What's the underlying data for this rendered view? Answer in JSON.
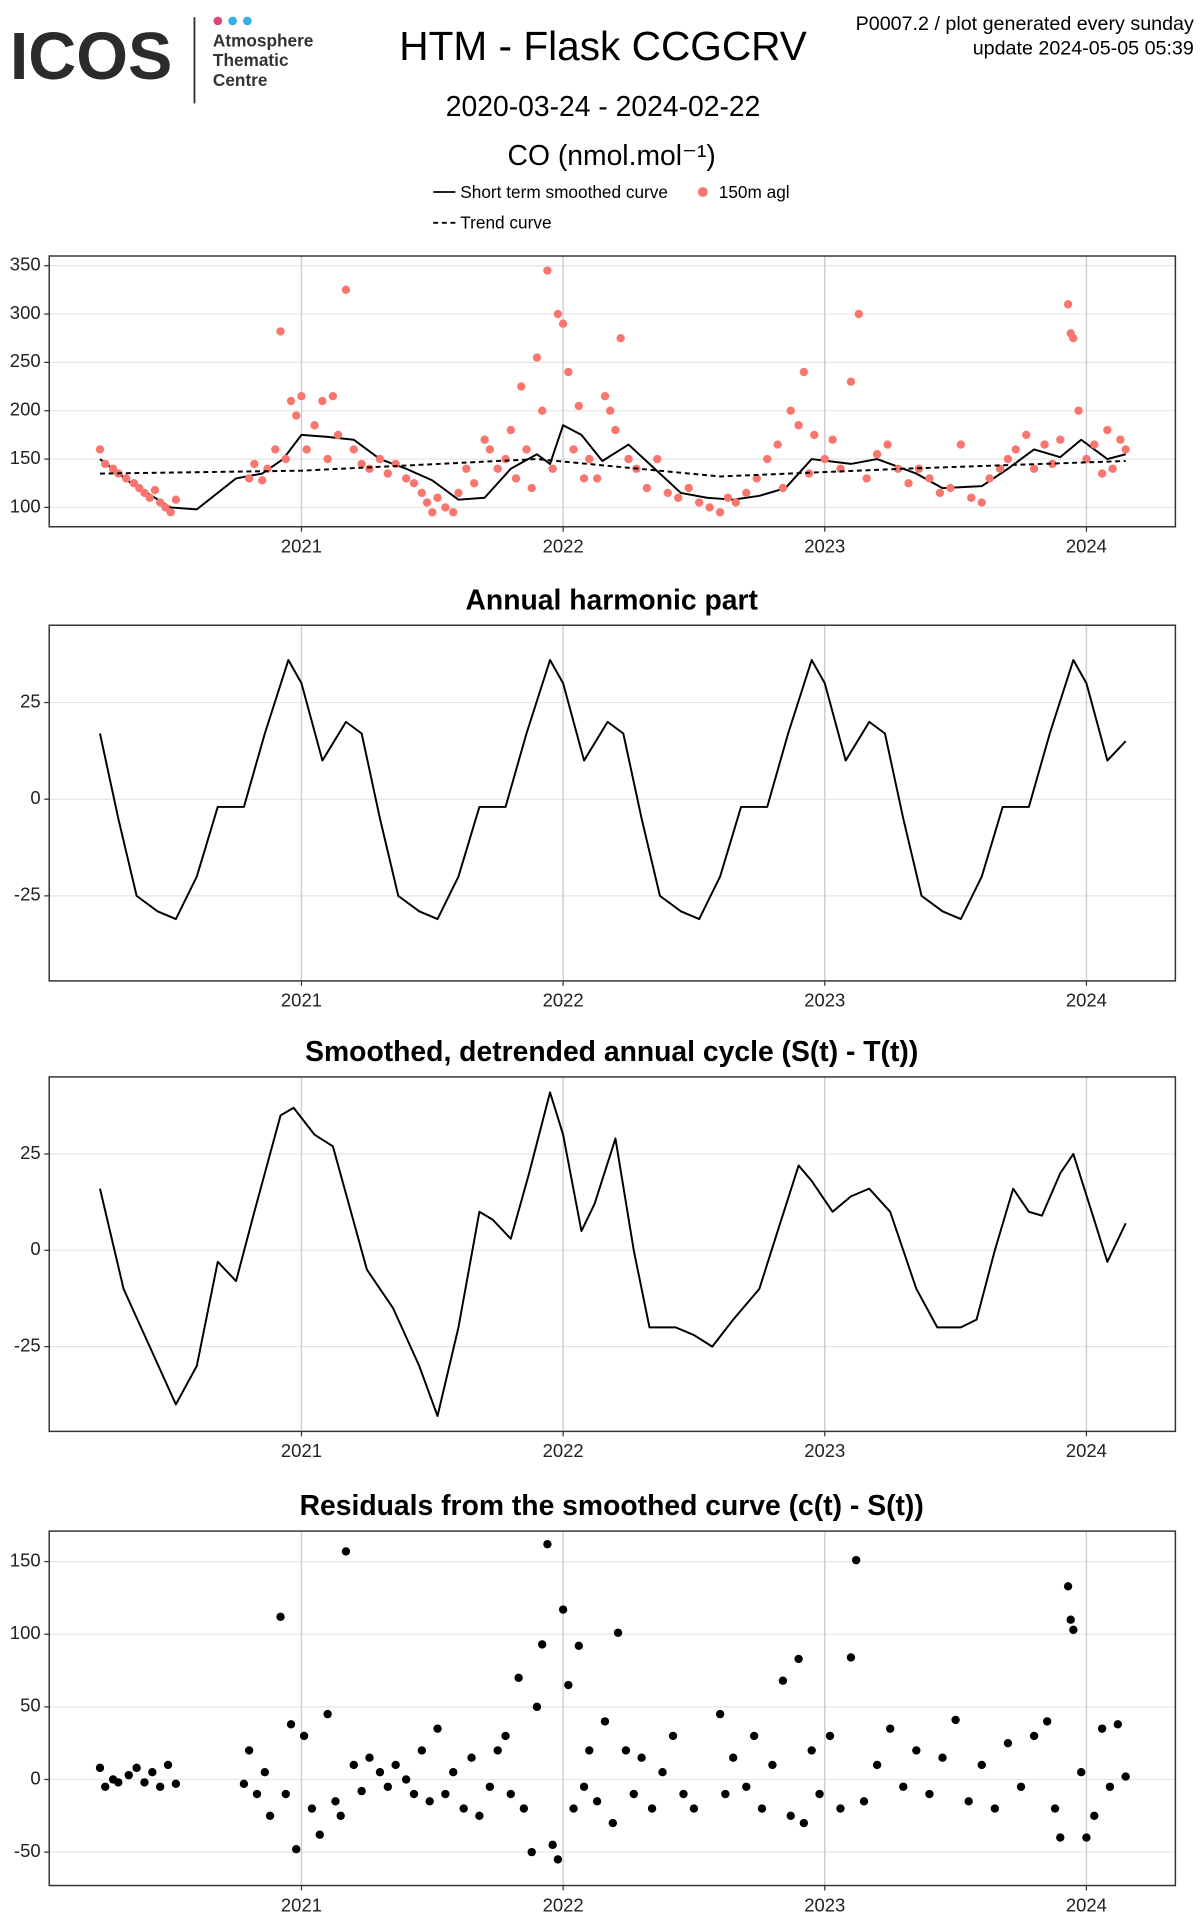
{
  "header": {
    "logo": "ICOS",
    "org": [
      "Atmosphere",
      "Thematic",
      "Centre"
    ],
    "title": "HTM - Flask CCGCRV",
    "subtitle": "2020-03-24 - 2024-02-22",
    "species": "CO (nmol.mol⁻¹)",
    "note": [
      "P0007.2 / plot generated every sunday",
      "update  2024-05-05 05:39"
    ]
  },
  "chart_data": [
    {
      "type": "line",
      "xlim": [
        2020.036,
        2024.34
      ],
      "xticks": [
        2021,
        2022,
        2023,
        2024
      ],
      "ylim": [
        80,
        360
      ],
      "yticks": [
        100,
        150,
        200,
        250,
        300,
        350
      ],
      "grid": true,
      "series": [
        {
          "name": "Short term smoothed curve",
          "color": "#000000",
          "style": "solid",
          "x": [
            2020.23,
            2020.35,
            2020.5,
            2020.6,
            2020.75,
            2020.85,
            2020.93,
            2021.0,
            2021.1,
            2021.2,
            2021.3,
            2021.4,
            2021.5,
            2021.6,
            2021.7,
            2021.8,
            2021.9,
            2021.95,
            2022.0,
            2022.07,
            2022.15,
            2022.25,
            2022.35,
            2022.45,
            2022.55,
            2022.65,
            2022.75,
            2022.85,
            2022.95,
            2023.1,
            2023.2,
            2023.35,
            2023.45,
            2023.6,
            2023.7,
            2023.8,
            2023.9,
            2023.98,
            2024.08,
            2024.15
          ],
          "values": [
            150,
            125,
            100,
            98,
            130,
            135,
            150,
            175,
            173,
            170,
            150,
            140,
            128,
            108,
            110,
            140,
            155,
            145,
            185,
            175,
            148,
            165,
            140,
            115,
            110,
            108,
            112,
            120,
            150,
            145,
            150,
            135,
            120,
            122,
            140,
            160,
            152,
            170,
            150,
            155
          ]
        },
        {
          "name": "150m agl",
          "color": "#f8766d",
          "style": "points",
          "x": [
            2020.23,
            2020.25,
            2020.28,
            2020.3,
            2020.33,
            2020.36,
            2020.38,
            2020.4,
            2020.42,
            2020.44,
            2020.46,
            2020.48,
            2020.5,
            2020.52,
            2020.8,
            2020.82,
            2020.85,
            2020.87,
            2020.9,
            2020.92,
            2020.94,
            2020.96,
            2020.98,
            2021.0,
            2021.02,
            2021.05,
            2021.08,
            2021.1,
            2021.12,
            2021.14,
            2021.17,
            2021.2,
            2021.23,
            2021.26,
            2021.3,
            2021.33,
            2021.36,
            2021.4,
            2021.43,
            2021.46,
            2021.48,
            2021.5,
            2021.52,
            2021.55,
            2021.58,
            2021.6,
            2021.63,
            2021.66,
            2021.7,
            2021.72,
            2021.75,
            2021.78,
            2021.8,
            2021.82,
            2021.84,
            2021.86,
            2021.88,
            2021.9,
            2021.92,
            2021.94,
            2021.96,
            2021.98,
            2022.0,
            2022.02,
            2022.04,
            2022.06,
            2022.08,
            2022.1,
            2022.13,
            2022.16,
            2022.18,
            2022.2,
            2022.22,
            2022.25,
            2022.28,
            2022.32,
            2022.36,
            2022.4,
            2022.44,
            2022.48,
            2022.52,
            2022.56,
            2022.6,
            2022.63,
            2022.66,
            2022.7,
            2022.74,
            2022.78,
            2022.82,
            2022.84,
            2022.87,
            2022.9,
            2022.92,
            2022.94,
            2022.96,
            2023.0,
            2023.03,
            2023.06,
            2023.1,
            2023.13,
            2023.16,
            2023.2,
            2023.24,
            2023.28,
            2023.32,
            2023.36,
            2023.4,
            2023.44,
            2023.48,
            2023.52,
            2023.56,
            2023.6,
            2023.63,
            2023.67,
            2023.7,
            2023.73,
            2023.77,
            2023.8,
            2023.84,
            2023.87,
            2023.9,
            2023.93,
            2023.94,
            2023.95,
            2023.97,
            2024.0,
            2024.03,
            2024.06,
            2024.08,
            2024.1,
            2024.13,
            2024.15
          ],
          "values": [
            160,
            145,
            140,
            135,
            130,
            125,
            120,
            115,
            110,
            118,
            105,
            100,
            95,
            108,
            130,
            145,
            128,
            140,
            160,
            282,
            150,
            210,
            195,
            215,
            160,
            185,
            210,
            150,
            215,
            175,
            325,
            160,
            145,
            140,
            150,
            135,
            145,
            130,
            125,
            115,
            105,
            95,
            110,
            100,
            95,
            115,
            140,
            125,
            170,
            160,
            140,
            150,
            180,
            130,
            225,
            160,
            120,
            255,
            200,
            345,
            140,
            300,
            290,
            240,
            160,
            205,
            130,
            150,
            130,
            215,
            200,
            180,
            275,
            150,
            140,
            120,
            150,
            115,
            110,
            120,
            105,
            100,
            95,
            110,
            105,
            115,
            130,
            150,
            165,
            120,
            200,
            185,
            240,
            135,
            175,
            150,
            170,
            140,
            230,
            300,
            130,
            155,
            165,
            140,
            125,
            140,
            130,
            115,
            120,
            165,
            110,
            105,
            130,
            140,
            150,
            160,
            175,
            140,
            165,
            145,
            170,
            310,
            280,
            275,
            200,
            150,
            165,
            135,
            180,
            140,
            170,
            160
          ]
        },
        {
          "name": "Trend curve",
          "color": "#000000",
          "style": "dashed",
          "x": [
            2020.23,
            2021.0,
            2021.9,
            2022.6,
            2023.3,
            2024.15
          ],
          "values": [
            135,
            138,
            150,
            132,
            140,
            148
          ]
        }
      ]
    },
    {
      "type": "line",
      "title": "Annual harmonic part",
      "xlim": [
        2020.036,
        2024.34
      ],
      "xticks": [
        2021,
        2022,
        2023,
        2024
      ],
      "ylim": [
        -47,
        45
      ],
      "yticks": [
        -25,
        0,
        25
      ],
      "grid": true,
      "color": "#000000",
      "x": [
        2020.23,
        2020.3,
        2020.37,
        2020.45,
        2020.52,
        2020.6,
        2020.68,
        2020.78,
        2020.86,
        2020.95,
        2021.0,
        2021.08,
        2021.17,
        2021.23,
        2021.3,
        2021.37,
        2021.45,
        2021.52,
        2021.6,
        2021.68,
        2021.78,
        2021.86,
        2021.95,
        2022.0,
        2022.08,
        2022.17,
        2022.23,
        2022.3,
        2022.37,
        2022.45,
        2022.52,
        2022.6,
        2022.68,
        2022.78,
        2022.86,
        2022.95,
        2023.0,
        2023.08,
        2023.17,
        2023.23,
        2023.3,
        2023.37,
        2023.45,
        2023.52,
        2023.6,
        2023.68,
        2023.78,
        2023.86,
        2023.95,
        2024.0,
        2024.08,
        2024.15
      ],
      "values": [
        17,
        -5,
        -25,
        -29,
        -31,
        -20,
        -2,
        -2,
        17,
        36,
        30,
        10,
        20,
        17,
        -5,
        -25,
        -29,
        -31,
        -20,
        -2,
        -2,
        17,
        36,
        30,
        10,
        20,
        17,
        -5,
        -25,
        -29,
        -31,
        -20,
        -2,
        -2,
        17,
        36,
        30,
        10,
        20,
        17,
        -5,
        -25,
        -29,
        -31,
        -20,
        -2,
        -2,
        17,
        36,
        30,
        10,
        15
      ]
    },
    {
      "type": "line",
      "title": "Smoothed, detrended annual cycle (S(t) - T(t))",
      "xlim": [
        2020.036,
        2024.34
      ],
      "xticks": [
        2021,
        2022,
        2023,
        2024
      ],
      "ylim": [
        -47,
        45
      ],
      "yticks": [
        -25,
        0,
        25
      ],
      "grid": true,
      "color": "#000000",
      "x": [
        2020.23,
        2020.32,
        2020.42,
        2020.52,
        2020.6,
        2020.68,
        2020.75,
        2020.82,
        2020.92,
        2020.97,
        2021.05,
        2021.12,
        2021.25,
        2021.35,
        2021.45,
        2021.52,
        2021.6,
        2021.68,
        2021.73,
        2021.8,
        2021.87,
        2021.95,
        2022.0,
        2022.07,
        2022.12,
        2022.2,
        2022.27,
        2022.33,
        2022.43,
        2022.5,
        2022.57,
        2022.65,
        2022.75,
        2022.82,
        2022.9,
        2022.95,
        2023.03,
        2023.1,
        2023.17,
        2023.25,
        2023.35,
        2023.43,
        2023.52,
        2023.58,
        2023.65,
        2023.72,
        2023.78,
        2023.83,
        2023.9,
        2023.95,
        2024.02,
        2024.08,
        2024.15
      ],
      "values": [
        16,
        -10,
        -25,
        -40,
        -30,
        -3,
        -8,
        10,
        35,
        37,
        30,
        27,
        -5,
        -15,
        -30,
        -43,
        -20,
        10,
        8,
        3,
        20,
        41,
        30,
        5,
        12,
        29,
        0,
        -20,
        -20,
        -22,
        -25,
        -18,
        -10,
        5,
        22,
        18,
        10,
        14,
        16,
        10,
        -10,
        -20,
        -20,
        -18,
        0,
        16,
        10,
        9,
        20,
        25,
        10,
        -3,
        7
      ]
    },
    {
      "type": "scatter",
      "title": "Residuals from the smoothed curve (c(t) - S(t))",
      "xlim": [
        2020.036,
        2024.34
      ],
      "xticks": [
        2021,
        2022,
        2023,
        2024
      ],
      "ylim": [
        -73,
        171
      ],
      "yticks": [
        -50,
        0,
        50,
        100,
        150
      ],
      "grid": true,
      "color": "#000000",
      "x": [
        2020.23,
        2020.25,
        2020.28,
        2020.3,
        2020.34,
        2020.37,
        2020.4,
        2020.43,
        2020.46,
        2020.49,
        2020.52,
        2020.78,
        2020.8,
        2020.83,
        2020.86,
        2020.88,
        2020.92,
        2020.94,
        2020.96,
        2020.98,
        2021.01,
        2021.04,
        2021.07,
        2021.1,
        2021.13,
        2021.15,
        2021.17,
        2021.2,
        2021.23,
        2021.26,
        2021.3,
        2021.33,
        2021.36,
        2021.4,
        2021.43,
        2021.46,
        2021.49,
        2021.52,
        2021.55,
        2021.58,
        2021.62,
        2021.65,
        2021.68,
        2021.72,
        2021.75,
        2021.78,
        2021.8,
        2021.83,
        2021.85,
        2021.88,
        2021.9,
        2021.92,
        2021.94,
        2021.96,
        2021.98,
        2022.0,
        2022.02,
        2022.04,
        2022.06,
        2022.08,
        2022.1,
        2022.13,
        2022.16,
        2022.19,
        2022.21,
        2022.24,
        2022.27,
        2022.3,
        2022.34,
        2022.38,
        2022.42,
        2022.46,
        2022.5,
        2022.6,
        2022.62,
        2022.65,
        2022.7,
        2022.73,
        2022.76,
        2022.8,
        2022.84,
        2022.87,
        2022.9,
        2022.92,
        2022.95,
        2022.98,
        2023.02,
        2023.06,
        2023.1,
        2023.12,
        2023.15,
        2023.2,
        2023.25,
        2023.3,
        2023.35,
        2023.4,
        2023.45,
        2023.5,
        2023.55,
        2023.6,
        2023.65,
        2023.7,
        2023.75,
        2023.8,
        2023.85,
        2023.88,
        2023.9,
        2023.93,
        2023.94,
        2023.95,
        2023.98,
        2024.0,
        2024.03,
        2024.06,
        2024.09,
        2024.12,
        2024.15
      ],
      "values": [
        8,
        -5,
        0,
        -2,
        3,
        8,
        -2,
        5,
        -5,
        10,
        -3,
        -3,
        20,
        -10,
        5,
        -25,
        112,
        -10,
        38,
        -48,
        30,
        -20,
        -38,
        45,
        -15,
        -25,
        157,
        10,
        -8,
        15,
        5,
        -5,
        10,
        0,
        -10,
        20,
        -15,
        35,
        -10,
        5,
        -20,
        15,
        -25,
        -5,
        20,
        30,
        -10,
        70,
        -20,
        -50,
        50,
        93,
        162,
        -45,
        -55,
        117,
        65,
        -20,
        92,
        -5,
        20,
        -15,
        40,
        -30,
        101,
        20,
        -10,
        15,
        -20,
        5,
        30,
        -10,
        -20,
        45,
        -10,
        15,
        -5,
        30,
        -20,
        10,
        68,
        -25,
        83,
        -30,
        20,
        -10,
        30,
        -20,
        84,
        151,
        -15,
        10,
        35,
        -5,
        20,
        -10,
        15,
        41,
        -15,
        10,
        -20,
        25,
        -5,
        30,
        40,
        -20,
        -40,
        133,
        110,
        103,
        5,
        -40,
        -25,
        35,
        -5,
        38,
        2
      ]
    }
  ]
}
